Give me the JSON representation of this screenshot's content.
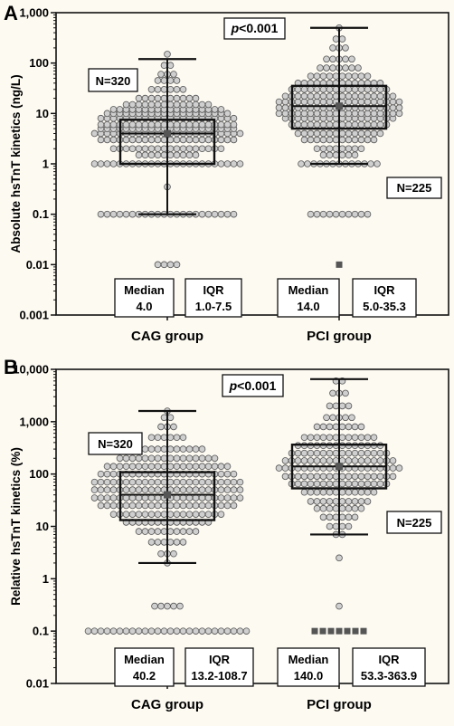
{
  "chart_data": [
    {
      "type": "box",
      "panel": "A",
      "ylabel": "Absolute hsTnT kinetics (ng/L)",
      "yscale": "log",
      "ylim": [
        0.001,
        1000
      ],
      "yticks": [
        {
          "value": 0.001,
          "label": "0.001"
        },
        {
          "value": 0.01,
          "label": "0.01"
        },
        {
          "value": 0.1,
          "label": "0.1"
        },
        {
          "value": 1,
          "label": "1"
        },
        {
          "value": 10,
          "label": "10"
        },
        {
          "value": 100,
          "label": "100"
        },
        {
          "value": 1000,
          "label": "1,000"
        }
      ],
      "categories": [
        "CAG group",
        "PCI group"
      ],
      "p_value_text": "p<0.001",
      "groups": [
        {
          "name": "CAG group",
          "n_label": "N=320",
          "median": 4.0,
          "q1": 1.0,
          "q3": 7.5,
          "whisker_low": 0.1,
          "whisker_high": 120,
          "mean": 4.0,
          "outliers": [
            0.35,
            0.01
          ],
          "median_label": "Median",
          "median_text": "4.0",
          "iqr_label": "IQR",
          "iqr_text": "1.0-7.5",
          "beeswarm": [
            {
              "value": 0.01,
              "count": 4
            },
            {
              "value": 0.1,
              "count": 22
            },
            {
              "value": 0.35,
              "count": 1
            },
            {
              "value": 1,
              "count": 24
            },
            {
              "value": 1.5,
              "count": 10
            },
            {
              "value": 2,
              "count": 18
            },
            {
              "value": 3,
              "count": 22
            },
            {
              "value": 4,
              "count": 24
            },
            {
              "value": 5,
              "count": 22
            },
            {
              "value": 6,
              "count": 22
            },
            {
              "value": 8,
              "count": 22
            },
            {
              "value": 10,
              "count": 20
            },
            {
              "value": 12,
              "count": 18
            },
            {
              "value": 15,
              "count": 14
            },
            {
              "value": 20,
              "count": 10
            },
            {
              "value": 30,
              "count": 6
            },
            {
              "value": 45,
              "count": 4
            },
            {
              "value": 60,
              "count": 3
            },
            {
              "value": 90,
              "count": 2
            },
            {
              "value": 150,
              "count": 1
            }
          ]
        },
        {
          "name": "PCI group",
          "n_label": "N=225",
          "median": 14.0,
          "q1": 5.0,
          "q3": 35.3,
          "whisker_low": 1.0,
          "whisker_high": 500,
          "mean": 14.0,
          "outliers": [
            0.01
          ],
          "median_label": "Median",
          "median_text": "14.0",
          "iqr_label": "IQR",
          "iqr_text": "5.0-35.3",
          "beeswarm": [
            {
              "value": 0.1,
              "count": 10
            },
            {
              "value": 1,
              "count": 13
            },
            {
              "value": 1.5,
              "count": 6
            },
            {
              "value": 2,
              "count": 8
            },
            {
              "value": 3,
              "count": 12
            },
            {
              "value": 4,
              "count": 14
            },
            {
              "value": 6,
              "count": 16
            },
            {
              "value": 8,
              "count": 18
            },
            {
              "value": 10,
              "count": 20
            },
            {
              "value": 13,
              "count": 20
            },
            {
              "value": 17,
              "count": 20
            },
            {
              "value": 22,
              "count": 18
            },
            {
              "value": 30,
              "count": 16
            },
            {
              "value": 40,
              "count": 14
            },
            {
              "value": 55,
              "count": 10
            },
            {
              "value": 80,
              "count": 7
            },
            {
              "value": 120,
              "count": 5
            },
            {
              "value": 200,
              "count": 3
            },
            {
              "value": 300,
              "count": 2
            },
            {
              "value": 500,
              "count": 1
            }
          ]
        }
      ]
    },
    {
      "type": "box",
      "panel": "B",
      "ylabel": "Relative hsTnT kinetics (%)",
      "yscale": "log",
      "ylim": [
        0.01,
        10000
      ],
      "yticks": [
        {
          "value": 0.01,
          "label": "0.01"
        },
        {
          "value": 0.1,
          "label": "0.1"
        },
        {
          "value": 1,
          "label": "1"
        },
        {
          "value": 10,
          "label": "10"
        },
        {
          "value": 100,
          "label": "100"
        },
        {
          "value": 1000,
          "label": "1,000"
        },
        {
          "value": 10000,
          "label": "10,000"
        }
      ],
      "categories": [
        "CAG group",
        "PCI group"
      ],
      "p_value_text": "p<0.001",
      "groups": [
        {
          "name": "CAG group",
          "n_label": "N=320",
          "median": 40.2,
          "q1": 13.2,
          "q3": 108.7,
          "whisker_low": 2.0,
          "whisker_high": 1600,
          "mean": 40.2,
          "outliers": [
            0.3,
            0.1
          ],
          "median_label": "Median",
          "median_text": "40.2",
          "iqr_label": "IQR",
          "iqr_text": "13.2-108.7",
          "beeswarm": [
            {
              "value": 0.1,
              "count": 26
            },
            {
              "value": 0.3,
              "count": 5
            },
            {
              "value": 2,
              "count": 1
            },
            {
              "value": 3,
              "count": 3
            },
            {
              "value": 5,
              "count": 6
            },
            {
              "value": 8,
              "count": 10
            },
            {
              "value": 12,
              "count": 14
            },
            {
              "value": 17,
              "count": 18
            },
            {
              "value": 25,
              "count": 22
            },
            {
              "value": 35,
              "count": 24
            },
            {
              "value": 50,
              "count": 24
            },
            {
              "value": 70,
              "count": 24
            },
            {
              "value": 100,
              "count": 22
            },
            {
              "value": 140,
              "count": 20
            },
            {
              "value": 200,
              "count": 16
            },
            {
              "value": 300,
              "count": 12
            },
            {
              "value": 500,
              "count": 6
            },
            {
              "value": 800,
              "count": 3
            },
            {
              "value": 1200,
              "count": 2
            },
            {
              "value": 1600,
              "count": 1
            }
          ]
        },
        {
          "name": "PCI group",
          "n_label": "N=225",
          "median": 140.0,
          "q1": 53.3,
          "q3": 363.9,
          "whisker_low": 7.0,
          "whisker_high": 6500,
          "mean": 140.0,
          "outliers": [
            0.1
          ],
          "median_label": "Median",
          "median_text": "140.0",
          "iqr_label": "IQR",
          "iqr_text": "53.3-363.9",
          "beeswarm": [
            {
              "value": 0.3,
              "count": 1
            },
            {
              "value": 2.5,
              "count": 1
            },
            {
              "value": 7,
              "count": 2
            },
            {
              "value": 10,
              "count": 4
            },
            {
              "value": 15,
              "count": 6
            },
            {
              "value": 22,
              "count": 8
            },
            {
              "value": 30,
              "count": 10
            },
            {
              "value": 45,
              "count": 12
            },
            {
              "value": 65,
              "count": 16
            },
            {
              "value": 90,
              "count": 18
            },
            {
              "value": 130,
              "count": 20
            },
            {
              "value": 180,
              "count": 18
            },
            {
              "value": 250,
              "count": 16
            },
            {
              "value": 350,
              "count": 14
            },
            {
              "value": 500,
              "count": 12
            },
            {
              "value": 800,
              "count": 8
            },
            {
              "value": 1200,
              "count": 5
            },
            {
              "value": 2000,
              "count": 4
            },
            {
              "value": 3500,
              "count": 3
            },
            {
              "value": 6000,
              "count": 2
            }
          ]
        }
      ]
    }
  ],
  "colors": {
    "background": "#fdfaf2",
    "dot_fill": "#cfcfcf",
    "dot_stroke": "#555555",
    "ink": "#111111",
    "mean_marker": "#555555"
  }
}
